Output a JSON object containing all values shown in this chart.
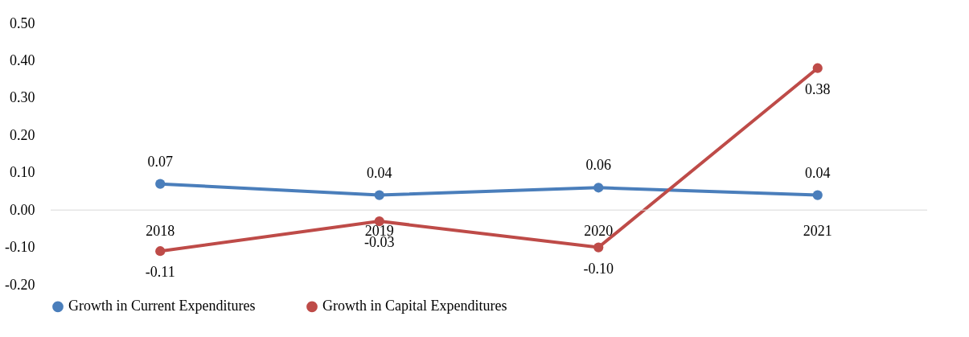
{
  "chart_data": {
    "type": "line",
    "categories": [
      "2018",
      "2019",
      "2020",
      "2021"
    ],
    "series": [
      {
        "name": "Growth in Current Expenditures",
        "color": "#4a7ebb",
        "values": [
          0.07,
          0.04,
          0.06,
          0.04
        ],
        "value_labels": [
          "0.07",
          "0.04",
          "0.06",
          "0.04"
        ]
      },
      {
        "name": "Growth in Capital Expenditures",
        "color": "#be4b48",
        "values": [
          -0.11,
          -0.03,
          -0.1,
          0.38
        ],
        "value_labels": [
          "-0.11",
          "-0.03",
          "-0.10",
          "0.38"
        ]
      }
    ],
    "ylim": [
      -0.2,
      0.5
    ],
    "yticks": [
      {
        "value": -0.2,
        "label": "-0.20"
      },
      {
        "value": -0.1,
        "label": "-0.10"
      },
      {
        "value": 0,
        "label": "0.00"
      },
      {
        "value": 0.1,
        "label": "0.10"
      },
      {
        "value": 0.2,
        "label": "0.20"
      },
      {
        "value": 0.3,
        "label": "0.30"
      },
      {
        "value": 0.4,
        "label": "0.40"
      },
      {
        "value": 0.5,
        "label": "0.50"
      }
    ],
    "grid": false,
    "legend": "bottom",
    "marker": "circle",
    "line_style": "solid"
  }
}
